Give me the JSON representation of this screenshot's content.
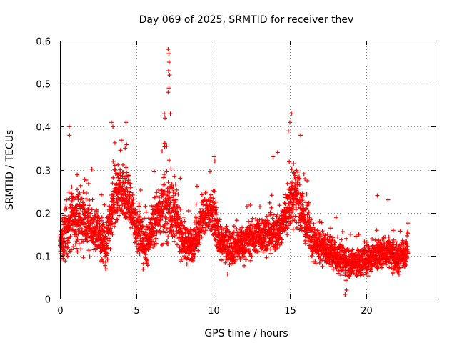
{
  "chart_data": {
    "type": "scatter",
    "title": "Day 069 of 2025, SRMTID for receiver thev",
    "xlabel": "GPS time / hours",
    "ylabel": "SRMTID / TECUs",
    "xlim": [
      0,
      24.5
    ],
    "ylim": [
      0,
      0.6
    ],
    "grid": true,
    "marker": "+",
    "series_color": "#ff0000",
    "x_ticks": [
      {
        "value": 0,
        "label": "0"
      },
      {
        "value": 5,
        "label": "5"
      },
      {
        "value": 10,
        "label": "10"
      },
      {
        "value": 15,
        "label": "15"
      },
      {
        "value": 20,
        "label": "20"
      }
    ],
    "y_ticks": [
      {
        "value": 0,
        "label": "0"
      },
      {
        "value": 0.1,
        "label": "0.1"
      },
      {
        "value": 0.2,
        "label": "0.2"
      },
      {
        "value": 0.3,
        "label": "0.3"
      },
      {
        "value": 0.4,
        "label": "0.4"
      },
      {
        "value": 0.5,
        "label": "0.5"
      },
      {
        "value": 0.6,
        "label": "0.6"
      }
    ],
    "trend": [
      {
        "x": 0.0,
        "base": 0.12,
        "spread": 0.05
      },
      {
        "x": 0.5,
        "base": 0.17,
        "spread": 0.09
      },
      {
        "x": 1.0,
        "base": 0.19,
        "spread": 0.08
      },
      {
        "x": 2.0,
        "base": 0.17,
        "spread": 0.07
      },
      {
        "x": 2.5,
        "base": 0.15,
        "spread": 0.06
      },
      {
        "x": 3.0,
        "base": 0.12,
        "spread": 0.06
      },
      {
        "x": 3.5,
        "base": 0.22,
        "spread": 0.1
      },
      {
        "x": 4.0,
        "base": 0.26,
        "spread": 0.08
      },
      {
        "x": 4.5,
        "base": 0.22,
        "spread": 0.08
      },
      {
        "x": 5.0,
        "base": 0.17,
        "spread": 0.07
      },
      {
        "x": 5.5,
        "base": 0.12,
        "spread": 0.06
      },
      {
        "x": 6.0,
        "base": 0.16,
        "spread": 0.07
      },
      {
        "x": 6.5,
        "base": 0.2,
        "spread": 0.08
      },
      {
        "x": 7.0,
        "base": 0.22,
        "spread": 0.1
      },
      {
        "x": 7.5,
        "base": 0.19,
        "spread": 0.08
      },
      {
        "x": 8.0,
        "base": 0.14,
        "spread": 0.06
      },
      {
        "x": 8.5,
        "base": 0.12,
        "spread": 0.05
      },
      {
        "x": 9.0,
        "base": 0.16,
        "spread": 0.05
      },
      {
        "x": 9.5,
        "base": 0.2,
        "spread": 0.06
      },
      {
        "x": 10.0,
        "base": 0.19,
        "spread": 0.07
      },
      {
        "x": 10.5,
        "base": 0.13,
        "spread": 0.05
      },
      {
        "x": 11.0,
        "base": 0.12,
        "spread": 0.05
      },
      {
        "x": 12.0,
        "base": 0.13,
        "spread": 0.05
      },
      {
        "x": 13.0,
        "base": 0.15,
        "spread": 0.05
      },
      {
        "x": 14.0,
        "base": 0.15,
        "spread": 0.05
      },
      {
        "x": 14.5,
        "base": 0.17,
        "spread": 0.06
      },
      {
        "x": 15.0,
        "base": 0.22,
        "spread": 0.08
      },
      {
        "x": 15.5,
        "base": 0.24,
        "spread": 0.08
      },
      {
        "x": 16.0,
        "base": 0.18,
        "spread": 0.07
      },
      {
        "x": 16.5,
        "base": 0.13,
        "spread": 0.05
      },
      {
        "x": 17.5,
        "base": 0.11,
        "spread": 0.04
      },
      {
        "x": 18.5,
        "base": 0.09,
        "spread": 0.04
      },
      {
        "x": 19.5,
        "base": 0.08,
        "spread": 0.04
      },
      {
        "x": 20.5,
        "base": 0.1,
        "spread": 0.04
      },
      {
        "x": 21.5,
        "base": 0.11,
        "spread": 0.04
      },
      {
        "x": 22.0,
        "base": 0.09,
        "spread": 0.04
      },
      {
        "x": 22.7,
        "base": 0.12,
        "spread": 0.04
      }
    ],
    "highlights": [
      {
        "x": 0.6,
        "y": 0.4
      },
      {
        "x": 0.62,
        "y": 0.38
      },
      {
        "x": 3.35,
        "y": 0.41
      },
      {
        "x": 3.45,
        "y": 0.4
      },
      {
        "x": 4.3,
        "y": 0.41
      },
      {
        "x": 4.25,
        "y": 0.35
      },
      {
        "x": 7.05,
        "y": 0.58
      },
      {
        "x": 7.1,
        "y": 0.57
      },
      {
        "x": 7.12,
        "y": 0.55
      },
      {
        "x": 7.08,
        "y": 0.53
      },
      {
        "x": 7.15,
        "y": 0.52
      },
      {
        "x": 7.1,
        "y": 0.49
      },
      {
        "x": 7.05,
        "y": 0.48
      },
      {
        "x": 6.8,
        "y": 0.43
      },
      {
        "x": 6.85,
        "y": 0.42
      },
      {
        "x": 7.2,
        "y": 0.43
      },
      {
        "x": 10.05,
        "y": 0.33
      },
      {
        "x": 10.1,
        "y": 0.32
      },
      {
        "x": 13.9,
        "y": 0.33
      },
      {
        "x": 14.2,
        "y": 0.34
      },
      {
        "x": 15.1,
        "y": 0.43
      },
      {
        "x": 15.0,
        "y": 0.41
      },
      {
        "x": 14.9,
        "y": 0.39
      },
      {
        "x": 15.7,
        "y": 0.38
      },
      {
        "x": 20.7,
        "y": 0.24
      },
      {
        "x": 21.4,
        "y": 0.23
      },
      {
        "x": 18.6,
        "y": 0.01
      },
      {
        "x": 18.7,
        "y": 0.02
      }
    ]
  }
}
